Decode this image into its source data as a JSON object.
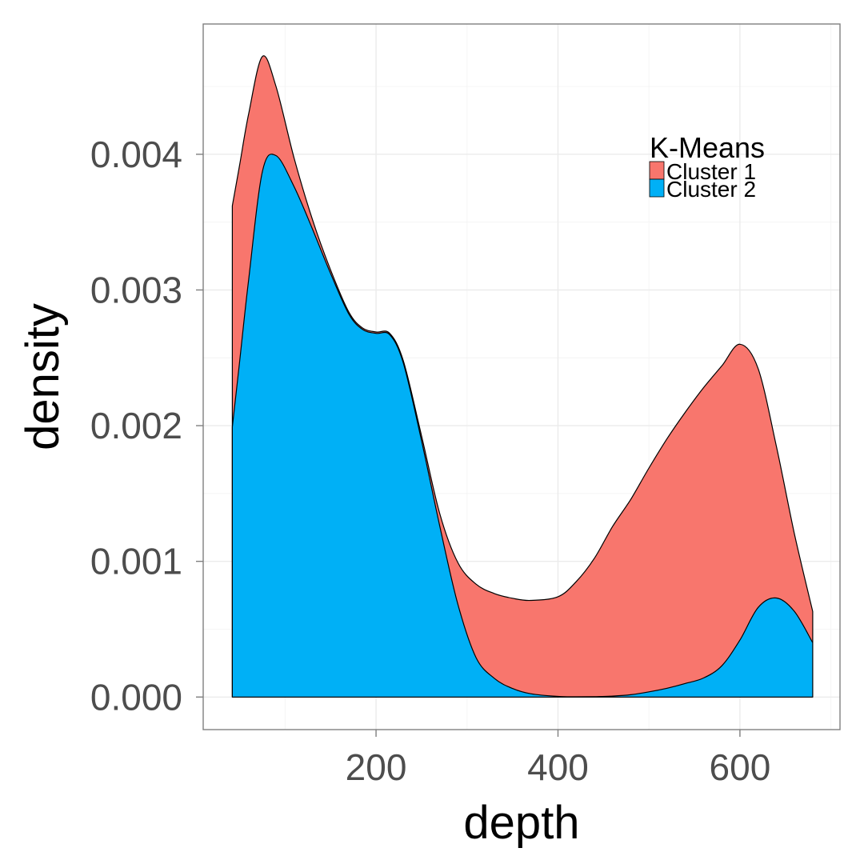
{
  "chart_data": {
    "type": "area",
    "xlabel": "depth",
    "ylabel": "density",
    "xlim": [
      10,
      710
    ],
    "ylim": [
      -0.00024,
      0.00496
    ],
    "x_ticks": [
      200,
      400,
      600
    ],
    "y_ticks": [
      0.0,
      0.001,
      0.002,
      0.003,
      0.004
    ],
    "x_tick_labels": [
      "200",
      "400",
      "600"
    ],
    "y_tick_labels": [
      "0.000",
      "0.001",
      "0.002",
      "0.003",
      "0.004"
    ],
    "grid": true,
    "stacked": true,
    "legend": {
      "title": "K-Means",
      "position": "top-right",
      "entries": [
        "Cluster 1",
        "Cluster 2"
      ]
    },
    "x": [
      42,
      50,
      60,
      75,
      90,
      110,
      130,
      150,
      170,
      185,
      200,
      215,
      230,
      250,
      270,
      290,
      310,
      330,
      350,
      370,
      400,
      420,
      440,
      460,
      480,
      500,
      520,
      540,
      560,
      580,
      600,
      620,
      640,
      660,
      680
    ],
    "series": [
      {
        "name": "Cluster 1",
        "color": "#F8766D",
        "values": [
          0.00163,
          0.00145,
          0.00122,
          0.00085,
          0.00051,
          0.00021,
          7e-05,
          2.65e-05,
          1.45e-05,
          1.1e-05,
          1e-05,
          1e-05,
          1.8e-05,
          3.6e-05,
          9.2e-05,
          0.000308,
          0.000542,
          0.000625,
          0.000665,
          0.000688,
          0.000735,
          0.000848,
          0.00102,
          0.00125,
          0.00144,
          0.00165,
          0.00184,
          0.002,
          0.00214,
          0.00221,
          0.00218,
          0.00176,
          0.00112,
          0.00057,
          0.00023
        ]
      },
      {
        "name": "Cluster 2",
        "color": "#00B0F6",
        "values": [
          0.00199,
          0.00247,
          0.00308,
          0.00387,
          0.00399,
          0.00376,
          0.00345,
          0.003122,
          0.002824,
          0.00271,
          0.00268,
          0.00267,
          0.00246,
          0.00189,
          0.00126,
          0.000682,
          0.00029,
          0.000138,
          6.3e-05,
          2.4e-05,
          4.5e-06,
          2e-06,
          3e-06,
          7e-06,
          1.7e-05,
          3.8e-05,
          6.5e-05,
          0.0001,
          0.00014,
          0.00023,
          0.00042,
          0.00066,
          0.00073,
          0.00063,
          0.0004
        ]
      }
    ]
  }
}
